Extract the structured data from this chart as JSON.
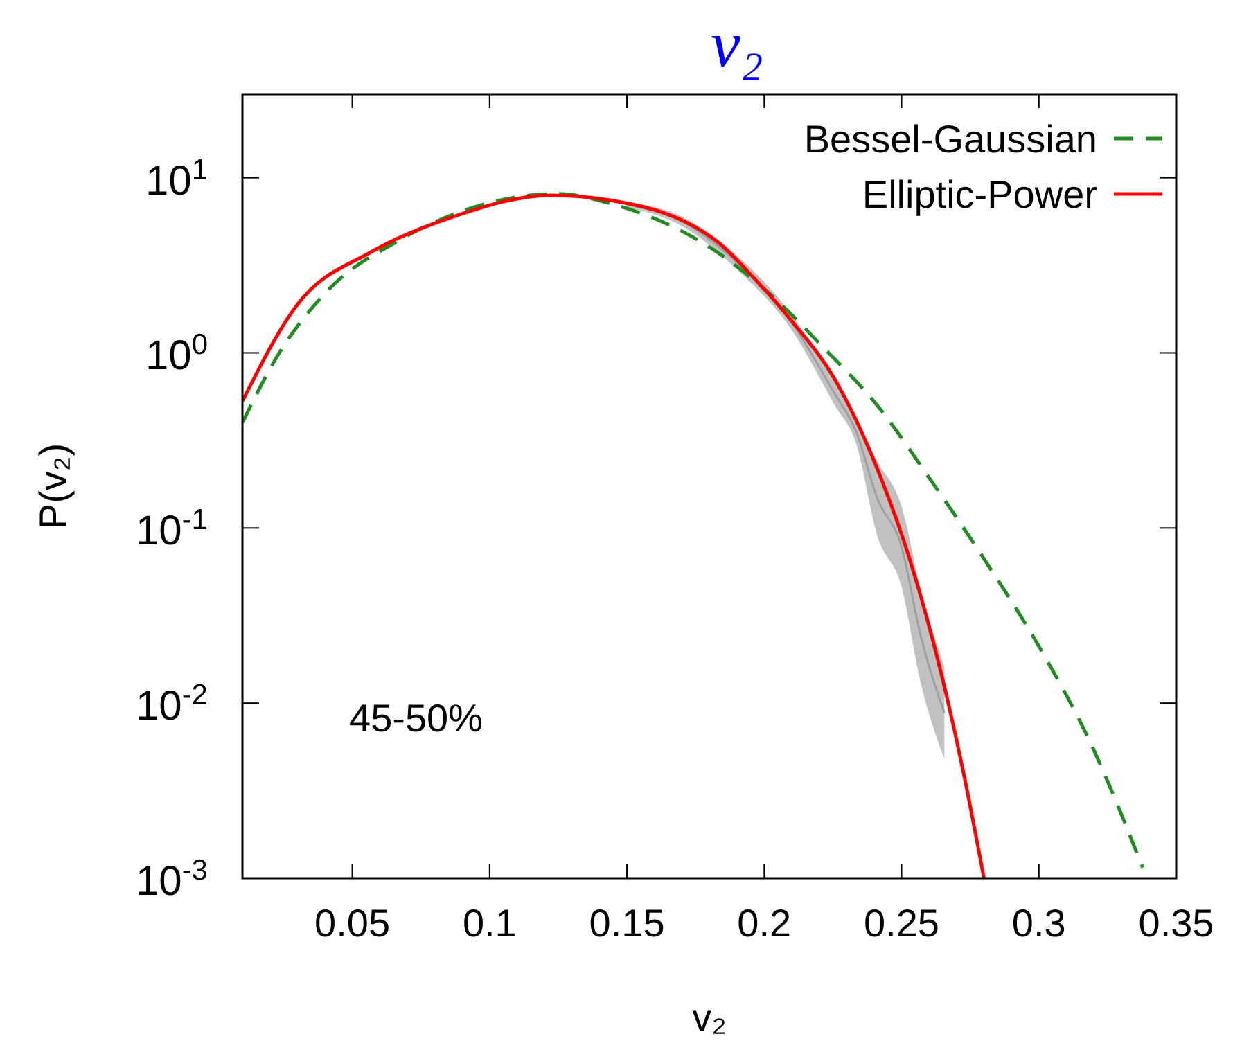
{
  "chart_data": {
    "type": "line",
    "title": "v₂",
    "xlabel": "v₂",
    "ylabel": "P(v₂)",
    "log": "y",
    "xlim": [
      0.01,
      0.35
    ],
    "ylim": [
      0.001,
      30
    ],
    "xticks": [
      0.05,
      0.1,
      0.15,
      0.2,
      0.25,
      0.3,
      0.35
    ],
    "yticks": [
      {
        "value": 0.001,
        "label": "10$^{-3}$"
      },
      {
        "value": 0.01,
        "label": "10$^{-2}$"
      },
      {
        "value": 0.1,
        "label": "10$^{-1}$"
      },
      {
        "value": 1,
        "label": "10$^{0}$"
      },
      {
        "value": 10,
        "label": "10$^{1}$"
      }
    ],
    "legend": "top right",
    "grid": false,
    "annotations": [
      "45-50%"
    ],
    "series": [
      {
        "type": "line",
        "line_style": "solid",
        "color": "#a0a0a0",
        "x": [
          0.15,
          0.17,
          0.19,
          0.21,
          0.2257,
          0.2334,
          0.2412,
          0.25,
          0.2569,
          0.2656
        ],
        "lower": [
          6.8,
          5.3,
          3.0,
          1.35,
          0.5,
          0.305,
          0.09,
          0.046,
          0.0132,
          0.0048
        ],
        "upper": [
          7.3,
          6.0,
          3.6,
          1.65,
          0.68,
          0.42,
          0.24,
          0.133,
          0.045,
          0.016
        ],
        "values": [
          7.05,
          5.64,
          3.29,
          1.49,
          0.583,
          0.358,
          0.147,
          0.078,
          0.0244,
          0.0088
        ]
      },
      {
        "name": "Bessel-Gaussian",
        "color": "#228b22",
        "line_style": "dashed",
        "x": [
          0.01,
          0.0222,
          0.0415,
          0.0665,
          0.1,
          0.1148,
          0.125,
          0.1437,
          0.1827,
          0.2022,
          0.2216,
          0.2412,
          0.2607,
          0.2802,
          0.2997,
          0.3193,
          0.3378
        ],
        "values": [
          0.4,
          0.93,
          2.31,
          4.34,
          7.2,
          7.94,
          8.1,
          7.15,
          3.77,
          2.16,
          1.07,
          0.5,
          0.187,
          0.066,
          0.0215,
          0.0057,
          0.00115
        ]
      },
      {
        "name": "Elliptic-Power",
        "color": "#ff0000",
        "line_style": "solid",
        "x": [
          0.01,
          0.0299,
          0.0569,
          0.0859,
          0.1225,
          0.1437,
          0.1827,
          0.1964,
          0.21,
          0.2257,
          0.2413,
          0.253,
          0.2647,
          0.2725,
          0.28
        ],
        "values": [
          0.53,
          1.88,
          3.77,
          5.93,
          7.94,
          7.45,
          4.34,
          2.66,
          1.52,
          0.706,
          0.215,
          0.066,
          0.0142,
          0.00404,
          0.001
        ]
      }
    ]
  }
}
